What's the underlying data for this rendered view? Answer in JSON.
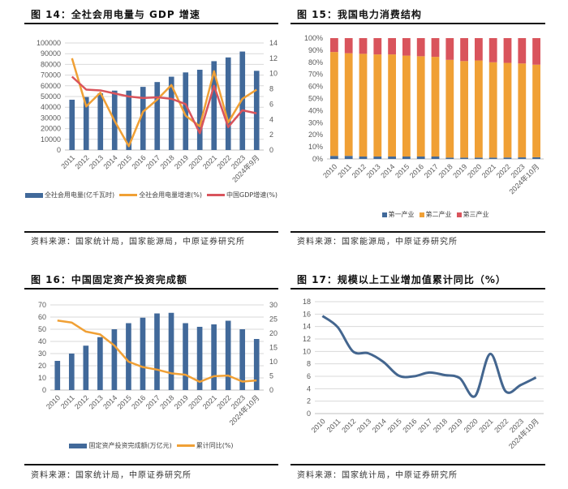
{
  "colors": {
    "bar_blue": "#41699a",
    "orange": "#f0a035",
    "red": "#d9545c",
    "line_blue": "#44668f",
    "grid": "#d9d9d9"
  },
  "panels": [
    {
      "title": "图 14：全社会用电量与 GDP 增速",
      "source": "资料来源：国家统计局，国家能源局，中原证券研究所",
      "legend": [
        "全社会用电量(亿千瓦时)",
        "全社会用电量增速(%)",
        "中国GDP增速(%)"
      ]
    },
    {
      "title": "图 15：我国电力消费结构",
      "source": "资料来源：国家能源局，中原证券研究所",
      "legend": [
        "第一产业",
        "第二产业",
        "第三产业"
      ]
    },
    {
      "title": "图 16：中国固定资产投资完成额",
      "source": "资料来源：国家统计局，中原证券研究所",
      "legend": [
        "固定资产投资完成额(万亿元)",
        "累计同比(%)"
      ]
    },
    {
      "title": "图 17：规模以上工业增加值累计同比（%）",
      "source": "资料来源：国家统计局，中原证券研究所",
      "legend": []
    }
  ],
  "chart_data": [
    {
      "type": "bar+line",
      "categories": [
        "2011",
        "2012",
        "2013",
        "2014",
        "2015",
        "2016",
        "2017",
        "2018",
        "2019",
        "2020",
        "2021",
        "2022",
        "2023",
        "2024年9月"
      ],
      "ylim": [
        0,
        100000
      ],
      "yticks": [
        0,
        10000,
        20000,
        30000,
        40000,
        50000,
        60000,
        70000,
        80000,
        90000,
        100000
      ],
      "y2lim": [
        0,
        14
      ],
      "y2ticks": [
        0,
        2,
        4,
        6,
        8,
        10,
        12,
        14
      ],
      "grid": true,
      "legend": "bottom",
      "series": [
        {
          "name": "全社会用电量(亿千瓦时)",
          "type": "bar",
          "axis": "left",
          "values": [
            47000,
            49500,
            53000,
            55500,
            55500,
            59000,
            63500,
            68500,
            72500,
            75000,
            83000,
            86500,
            92000,
            74000
          ]
        },
        {
          "name": "全社会用电量增速(%)",
          "type": "line",
          "axis": "right",
          "values": [
            12.0,
            5.7,
            7.5,
            3.8,
            0.5,
            5.0,
            6.6,
            8.5,
            4.5,
            3.1,
            10.3,
            3.6,
            6.7,
            7.9
          ]
        },
        {
          "name": "中国GDP增速(%)",
          "type": "line",
          "axis": "right",
          "values": [
            9.6,
            7.9,
            7.8,
            7.4,
            7.0,
            6.8,
            6.9,
            6.7,
            6.0,
            2.2,
            8.4,
            3.0,
            5.2,
            4.8
          ]
        }
      ]
    },
    {
      "type": "stacked-bar",
      "categories": [
        "2010",
        "2011",
        "2012",
        "2013",
        "2014",
        "2015",
        "2016",
        "2017",
        "2018",
        "2019",
        "2020",
        "2021",
        "2022",
        "2023",
        "2024年10月"
      ],
      "ylim": [
        0,
        100
      ],
      "yticks": [
        "0%",
        "10%",
        "20%",
        "30%",
        "40%",
        "50%",
        "60%",
        "70%",
        "80%",
        "90%",
        "100%"
      ],
      "grid": false,
      "legend": "bottom",
      "series": [
        {
          "name": "第一产业",
          "values": [
            2.5,
            2.5,
            2.0,
            2.0,
            2.0,
            2.0,
            2.0,
            2.0,
            1.1,
            1.1,
            1.1,
            1.1,
            1.2,
            1.3,
            1.4
          ]
        },
        {
          "name": "第二产业",
          "values": [
            86.0,
            85.0,
            85.0,
            84.5,
            84.5,
            83.5,
            83.0,
            82.5,
            80.9,
            79.9,
            80.4,
            78.9,
            78.3,
            77.7,
            76.6
          ]
        },
        {
          "name": "第三产业",
          "values": [
            11.5,
            12.5,
            13.0,
            13.5,
            13.5,
            14.5,
            15.0,
            15.5,
            18.0,
            19.0,
            18.5,
            20.0,
            20.5,
            21.0,
            22.0
          ]
        }
      ]
    },
    {
      "type": "bar+line",
      "categories": [
        "2010",
        "2011",
        "2012",
        "2013",
        "2014",
        "2015",
        "2016",
        "2017",
        "2018",
        "2019",
        "2020",
        "2021",
        "2022",
        "2023",
        "2024年10月"
      ],
      "ylim": [
        0,
        70
      ],
      "yticks": [
        0,
        10,
        20,
        30,
        40,
        50,
        60,
        70
      ],
      "y2lim": [
        0,
        30
      ],
      "y2ticks": [
        0,
        5,
        10,
        15,
        20,
        25,
        30
      ],
      "grid": true,
      "legend": "bottom",
      "series": [
        {
          "name": "固定资产投资完成额(万亿元)",
          "type": "bar",
          "axis": "left",
          "values": [
            24,
            30,
            36.5,
            43.5,
            50,
            55,
            59.5,
            63,
            63.5,
            55,
            52,
            54,
            57,
            50,
            42
          ]
        },
        {
          "name": "累计同比(%)",
          "type": "line",
          "axis": "right",
          "values": [
            24.5,
            23.8,
            20.6,
            19.6,
            15.7,
            10.0,
            8.1,
            7.2,
            5.9,
            5.4,
            2.9,
            4.9,
            5.1,
            3.0,
            3.4
          ]
        }
      ]
    },
    {
      "type": "line",
      "smooth": true,
      "categories": [
        "2010",
        "2011",
        "2012",
        "2013",
        "2014",
        "2015",
        "2016",
        "2017",
        "2018",
        "2019",
        "2020",
        "2021",
        "2022",
        "2023",
        "2024年10月"
      ],
      "ylim": [
        0,
        18
      ],
      "yticks": [
        0,
        2,
        4,
        6,
        8,
        10,
        12,
        14,
        16,
        18
      ],
      "grid": true,
      "series": [
        {
          "values": [
            15.7,
            13.9,
            10.0,
            9.7,
            8.3,
            6.1,
            6.0,
            6.6,
            6.2,
            5.7,
            2.8,
            9.6,
            3.6,
            4.6,
            5.8
          ]
        }
      ]
    }
  ]
}
